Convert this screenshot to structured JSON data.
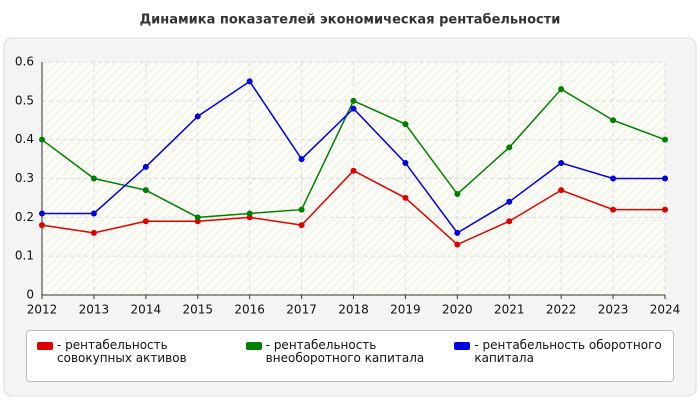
{
  "chart_data": {
    "type": "line",
    "title": "Динамика показателей экономическая рентабельности",
    "categories": [
      "2012",
      "2013",
      "2014",
      "2015",
      "2016",
      "2017",
      "2018",
      "2019",
      "2020",
      "2021",
      "2022",
      "2023",
      "2024"
    ],
    "series": [
      {
        "name": "- рентабельность совокупных активов",
        "color": "#e00000",
        "values": [
          0.18,
          0.16,
          0.19,
          0.19,
          0.2,
          0.18,
          0.32,
          0.25,
          0.13,
          0.19,
          0.27,
          0.22,
          0.22
        ]
      },
      {
        "name": "- рентабельность внеоборотного капитала",
        "color": "#008000",
        "values": [
          0.4,
          0.3,
          0.27,
          0.2,
          0.21,
          0.22,
          0.5,
          0.44,
          0.26,
          0.38,
          0.53,
          0.45,
          0.4
        ]
      },
      {
        "name": "- рентабельность оборотного капитала",
        "color": "#0000e0",
        "values": [
          0.21,
          0.21,
          0.33,
          0.46,
          0.55,
          0.35,
          0.48,
          0.34,
          0.16,
          0.24,
          0.34,
          0.3,
          0.3
        ]
      }
    ],
    "ylim": [
      0,
      0.6
    ],
    "yticks": [
      0,
      0.1,
      0.2,
      0.3,
      0.4,
      0.5,
      0.6
    ],
    "grid": true
  }
}
